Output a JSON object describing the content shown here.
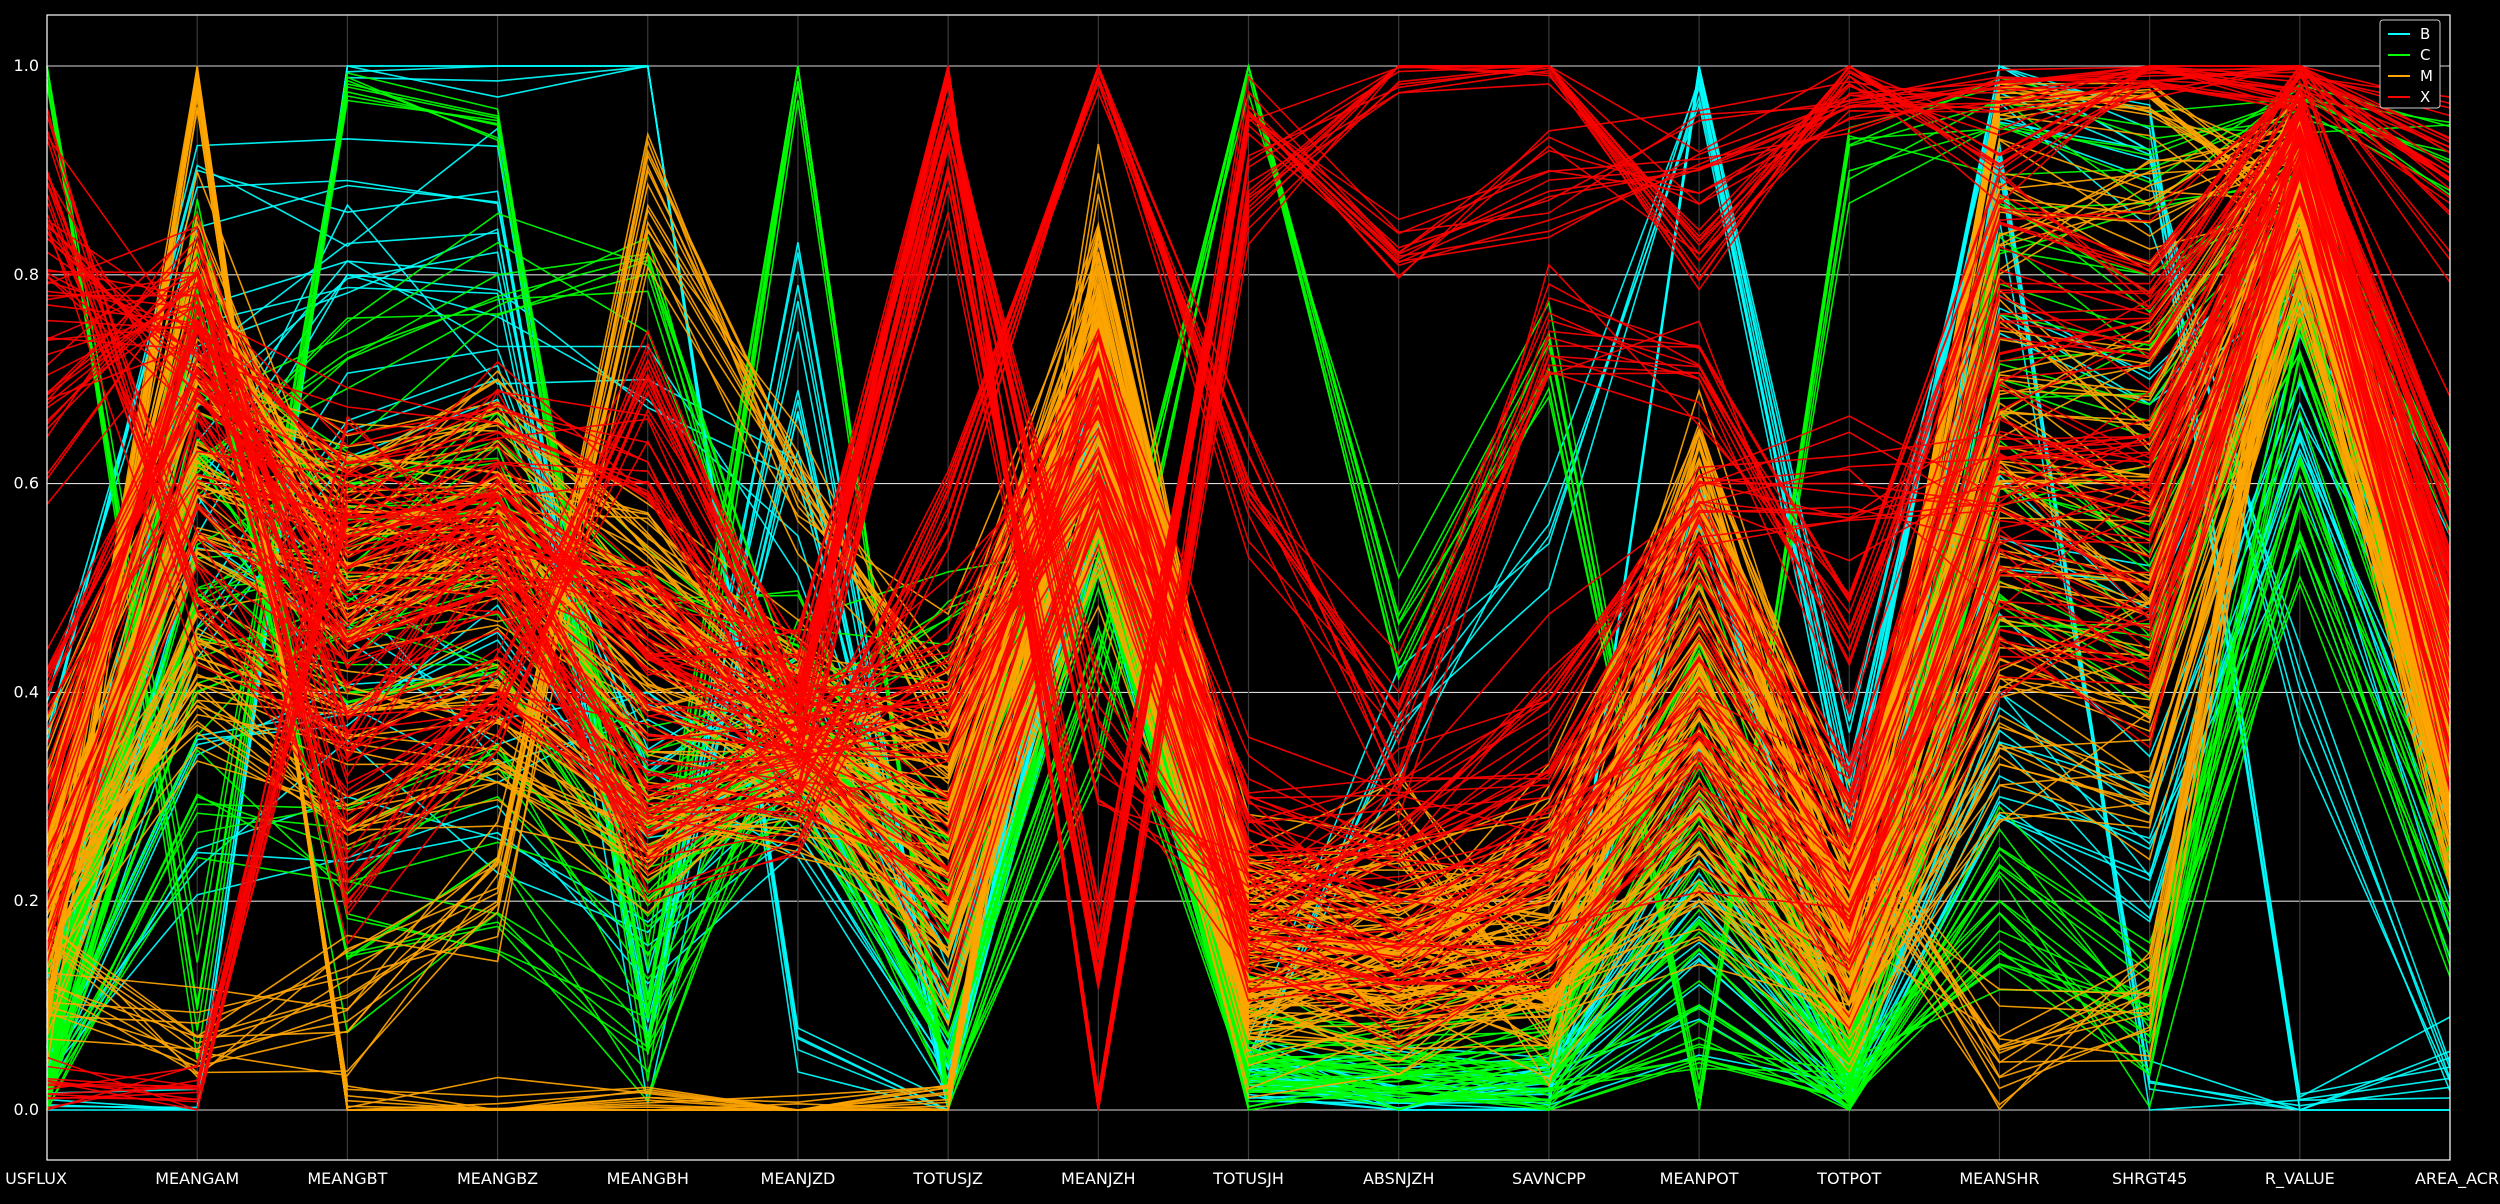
{
  "chart_data": {
    "type": "parallel-coordinates",
    "background": "#000000",
    "ylim": [
      0.0,
      1.0
    ],
    "yticks": [
      0.0,
      0.2,
      0.4,
      0.6,
      0.8,
      1.0
    ],
    "ytick_labels": [
      "0.0",
      "0.2",
      "0.4",
      "0.6",
      "0.8",
      "1.0"
    ],
    "grid": "horizontal",
    "legend_position": "top-right",
    "dimensions": [
      "USFLUX",
      "MEANGAM",
      "MEANGBT",
      "MEANGBZ",
      "MEANGBH",
      "MEANJZD",
      "TOTUSJZ",
      "MEANJZH",
      "TOTUSJH",
      "ABSNJZH",
      "SAVNCPP",
      "MEANPOT",
      "TOTPOT",
      "MEANSHR",
      "SHRGT45",
      "R_VALUE",
      "AREA_ACR"
    ],
    "series": [
      {
        "name": "B",
        "color": "#00ffff"
      },
      {
        "name": "C",
        "color": "#00ff00"
      },
      {
        "name": "M",
        "color": "#ffa500"
      },
      {
        "name": "X",
        "color": "#ff0000"
      }
    ],
    "profiles": {
      "B": [
        [
          0.01,
          0.0,
          1.0,
          1.0,
          1.0,
          0.07,
          0.0,
          0.73,
          0.05,
          0.36,
          0.55,
          0.97,
          0.3,
          1.0,
          0.94,
          0.0,
          0.05
        ],
        [
          0.36,
          0.9,
          0.86,
          0.88,
          0.06,
          0.79,
          0.01,
          0.65,
          0.04,
          0.01,
          0.01,
          1.0,
          0.33,
          0.95,
          0.91,
          0.42,
          0.03
        ],
        [
          0.1,
          0.72,
          0.83,
          0.84,
          0.06,
          0.68,
          0.01,
          0.62,
          0.03,
          0.02,
          0.02,
          0.6,
          0.03,
          0.9,
          0.02,
          0.0,
          0.0
        ],
        [
          0.05,
          0.55,
          0.45,
          0.35,
          0.4,
          0.3,
          0.05,
          0.55,
          0.03,
          0.02,
          0.02,
          0.15,
          0.02,
          0.4,
          0.3,
          0.7,
          0.35
        ],
        [
          0.02,
          0.25,
          0.3,
          0.26,
          0.18,
          0.31,
          0.09,
          0.6,
          0.03,
          0.01,
          0.01,
          0.12,
          0.01,
          0.28,
          0.22,
          0.65,
          0.28
        ],
        [
          0.08,
          0.45,
          0.65,
          0.7,
          0.33,
          0.4,
          0.15,
          0.66,
          0.06,
          0.02,
          0.04,
          0.2,
          0.03,
          0.55,
          0.48,
          0.8,
          0.4
        ],
        [
          0.04,
          0.35,
          0.38,
          0.45,
          0.25,
          0.33,
          0.05,
          0.58,
          0.02,
          0.01,
          0.02,
          0.3,
          0.02,
          0.32,
          0.25,
          0.6,
          0.2
        ],
        [
          0.06,
          0.6,
          0.8,
          0.76,
          0.68,
          0.55,
          0.1,
          0.7,
          0.05,
          0.04,
          0.05,
          0.22,
          0.04,
          0.78,
          0.7,
          0.85,
          0.55
        ]
      ],
      "C": [
        [
          1.0,
          0.1,
          0.98,
          0.95,
          0.09,
          1.0,
          0.01,
          0.4,
          1.0,
          0.45,
          0.71,
          0.0,
          0.93,
          0.94,
          0.92,
          0.97,
          0.91
        ],
        [
          0.0,
          0.8,
          0.15,
          0.18,
          0.06,
          0.4,
          0.47,
          0.55,
          0.03,
          0.02,
          0.05,
          0.35,
          0.04,
          0.2,
          0.07,
          0.75,
          0.3
        ],
        [
          0.05,
          0.62,
          0.72,
          0.8,
          0.82,
          0.36,
          0.22,
          0.68,
          0.04,
          0.05,
          0.06,
          0.28,
          0.02,
          0.84,
          0.8,
          0.9,
          0.6
        ],
        [
          0.02,
          0.5,
          0.55,
          0.6,
          0.3,
          0.38,
          0.18,
          0.57,
          0.05,
          0.03,
          0.03,
          0.18,
          0.02,
          0.52,
          0.45,
          0.78,
          0.38
        ],
        [
          0.03,
          0.4,
          0.46,
          0.5,
          0.27,
          0.35,
          0.12,
          0.61,
          0.07,
          0.06,
          0.08,
          0.4,
          0.05,
          0.6,
          0.55,
          0.82,
          0.42
        ],
        [
          0.01,
          0.3,
          0.25,
          0.3,
          0.15,
          0.32,
          0.07,
          0.52,
          0.02,
          0.02,
          0.01,
          0.1,
          0.01,
          0.25,
          0.15,
          0.62,
          0.22
        ],
        [
          0.1,
          0.7,
          0.6,
          0.62,
          0.5,
          0.45,
          0.25,
          0.72,
          0.09,
          0.08,
          0.1,
          0.45,
          0.07,
          0.7,
          0.66,
          0.88,
          0.48
        ],
        [
          0.07,
          0.58,
          0.4,
          0.42,
          0.2,
          0.34,
          0.05,
          0.5,
          0.03,
          0.01,
          0.02,
          0.05,
          0.01,
          0.15,
          0.1,
          0.55,
          0.18
        ]
      ],
      "M": [
        [
          0.1,
          0.98,
          0.0,
          0.0,
          0.0,
          0.0,
          0.01,
          0.84,
          0.2,
          0.26,
          0.1,
          0.6,
          0.15,
          0.97,
          0.97,
          0.85,
          0.3
        ],
        [
          0.12,
          0.07,
          0.11,
          0.2,
          0.85,
          0.6,
          0.4,
          0.78,
          0.18,
          0.15,
          0.25,
          0.62,
          0.25,
          0.06,
          0.1,
          0.9,
          0.35
        ],
        [
          0.25,
          0.85,
          0.5,
          0.55,
          0.45,
          0.37,
          0.3,
          0.7,
          0.15,
          0.18,
          0.2,
          0.4,
          0.2,
          0.86,
          0.85,
          0.92,
          0.4
        ],
        [
          0.2,
          0.55,
          0.48,
          0.52,
          0.36,
          0.34,
          0.25,
          0.65,
          0.12,
          0.12,
          0.15,
          0.35,
          0.12,
          0.55,
          0.5,
          0.88,
          0.38
        ],
        [
          0.15,
          0.45,
          0.38,
          0.4,
          0.28,
          0.3,
          0.2,
          0.6,
          0.1,
          0.1,
          0.12,
          0.28,
          0.1,
          0.45,
          0.4,
          0.84,
          0.32
        ],
        [
          0.3,
          0.7,
          0.62,
          0.66,
          0.55,
          0.4,
          0.35,
          0.75,
          0.2,
          0.2,
          0.25,
          0.5,
          0.2,
          0.7,
          0.68,
          0.94,
          0.45
        ],
        [
          0.18,
          0.4,
          0.3,
          0.35,
          0.22,
          0.32,
          0.15,
          0.55,
          0.08,
          0.08,
          0.1,
          0.2,
          0.08,
          0.35,
          0.3,
          0.8,
          0.25
        ],
        [
          0.22,
          0.62,
          0.55,
          0.58,
          0.48,
          0.36,
          0.28,
          0.68,
          0.16,
          0.15,
          0.18,
          0.42,
          0.15,
          0.62,
          0.58,
          0.9,
          0.42
        ]
      ],
      "X": [
        [
          0.78,
          0.78,
          0.23,
          0.4,
          0.7,
          0.4,
          1.0,
          0.0,
          0.88,
          1.0,
          1.0,
          0.82,
          1.0,
          0.9,
          1.0,
          1.0,
          0.86
        ],
        [
          0.66,
          0.8,
          0.4,
          0.55,
          0.5,
          0.35,
          0.9,
          0.15,
          0.95,
          0.82,
          0.88,
          0.9,
          0.96,
          0.98,
          1.0,
          0.97,
          0.6
        ],
        [
          0.03,
          0.02,
          0.6,
          0.55,
          0.25,
          0.3,
          0.6,
          1.0,
          0.6,
          0.37,
          0.74,
          0.7,
          0.43,
          0.85,
          0.8,
          1.0,
          0.93
        ],
        [
          0.3,
          0.75,
          0.62,
          0.65,
          0.6,
          0.38,
          0.45,
          0.68,
          0.3,
          0.25,
          0.3,
          0.55,
          0.3,
          0.75,
          0.72,
          0.95,
          0.5
        ],
        [
          0.4,
          0.68,
          0.55,
          0.58,
          0.42,
          0.36,
          0.38,
          0.62,
          0.25,
          0.2,
          0.25,
          0.45,
          0.25,
          0.65,
          0.62,
          0.92,
          0.45
        ],
        [
          0.84,
          0.7,
          0.5,
          0.6,
          0.45,
          0.4,
          0.95,
          0.35,
          0.2,
          0.3,
          0.4,
          0.6,
          0.6,
          0.58,
          0.6,
          0.96,
          0.58
        ],
        [
          0.2,
          0.6,
          0.45,
          0.5,
          0.32,
          0.34,
          0.28,
          0.7,
          0.18,
          0.16,
          0.2,
          0.36,
          0.18,
          0.55,
          0.5,
          0.9,
          0.38
        ],
        [
          0.9,
          0.5,
          0.35,
          0.42,
          0.3,
          0.33,
          0.2,
          0.58,
          0.15,
          0.12,
          0.15,
          0.3,
          0.15,
          0.45,
          0.42,
          0.88,
          0.35
        ]
      ]
    },
    "lines_per_class": {
      "B": 36,
      "C": 60,
      "M": 120,
      "X": 110
    },
    "jitter": 0.06
  },
  "legend": {
    "items": [
      {
        "label": "B",
        "color": "#00ffff"
      },
      {
        "label": "C",
        "color": "#00ff00"
      },
      {
        "label": "M",
        "color": "#ffa500"
      },
      {
        "label": "X",
        "color": "#ff0000"
      }
    ]
  }
}
